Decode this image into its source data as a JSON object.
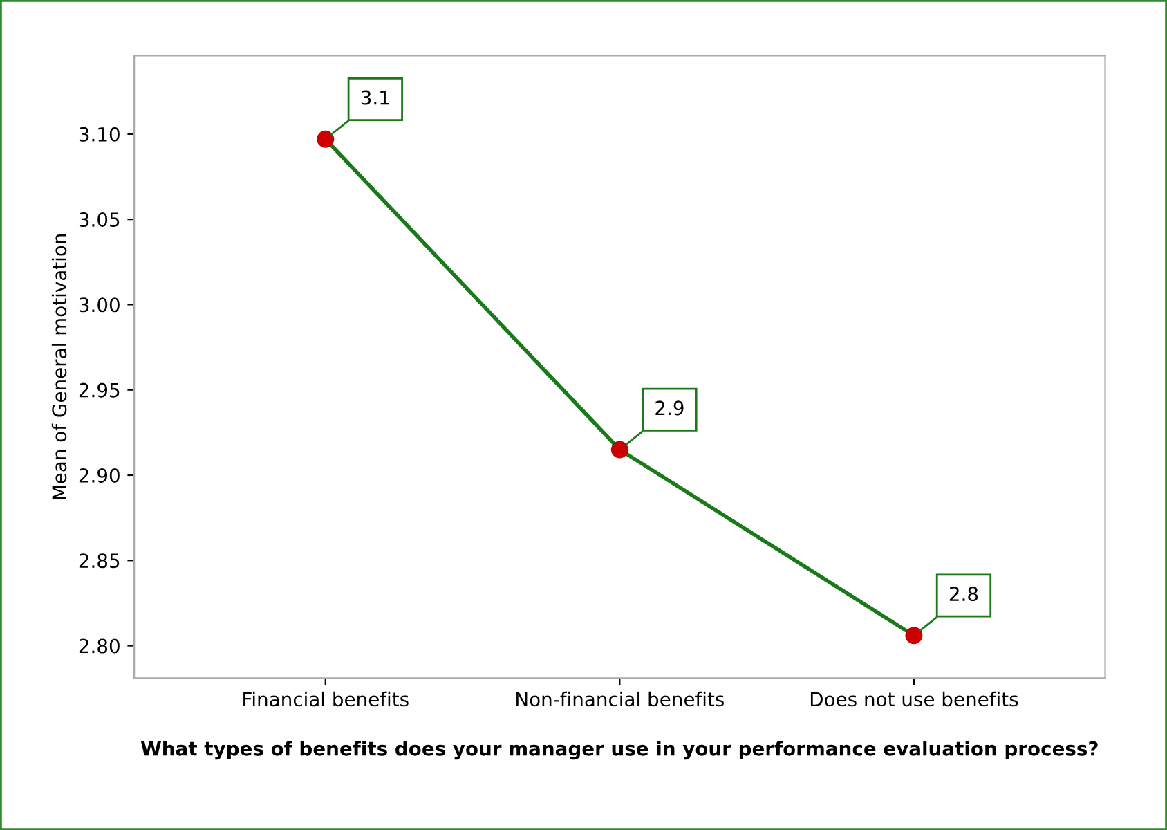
{
  "chart_data": {
    "type": "line",
    "xlabel": "What types of benefits does your manager use in your performance evaluation process?",
    "ylabel": "Mean of General motivation",
    "categories": [
      "Financial benefits",
      "Non-financial benefits",
      "Does not use benefits"
    ],
    "series": [
      {
        "color": "#1a7a1a",
        "colors": [
          "#cc0000",
          "#cc0000",
          "#cc0000"
        ],
        "values": [
          3.097,
          2.915,
          2.806
        ],
        "value_labels": [
          "3.1",
          "2.9",
          "2.8"
        ]
      }
    ],
    "ylim": [
      2.781,
      3.146
    ],
    "yticks": [
      {
        "value": 2.8,
        "label": "2.80"
      },
      {
        "value": 2.85,
        "label": "2.85"
      },
      {
        "value": 2.9,
        "label": "2.90"
      },
      {
        "value": 2.95,
        "label": "2.95"
      },
      {
        "value": 3.0,
        "label": "3.00"
      },
      {
        "value": 3.05,
        "label": "3.05"
      },
      {
        "value": 3.1,
        "label": "3.10"
      }
    ],
    "marker": "circle",
    "line_style": "solid",
    "grid": false,
    "legend": false
  }
}
